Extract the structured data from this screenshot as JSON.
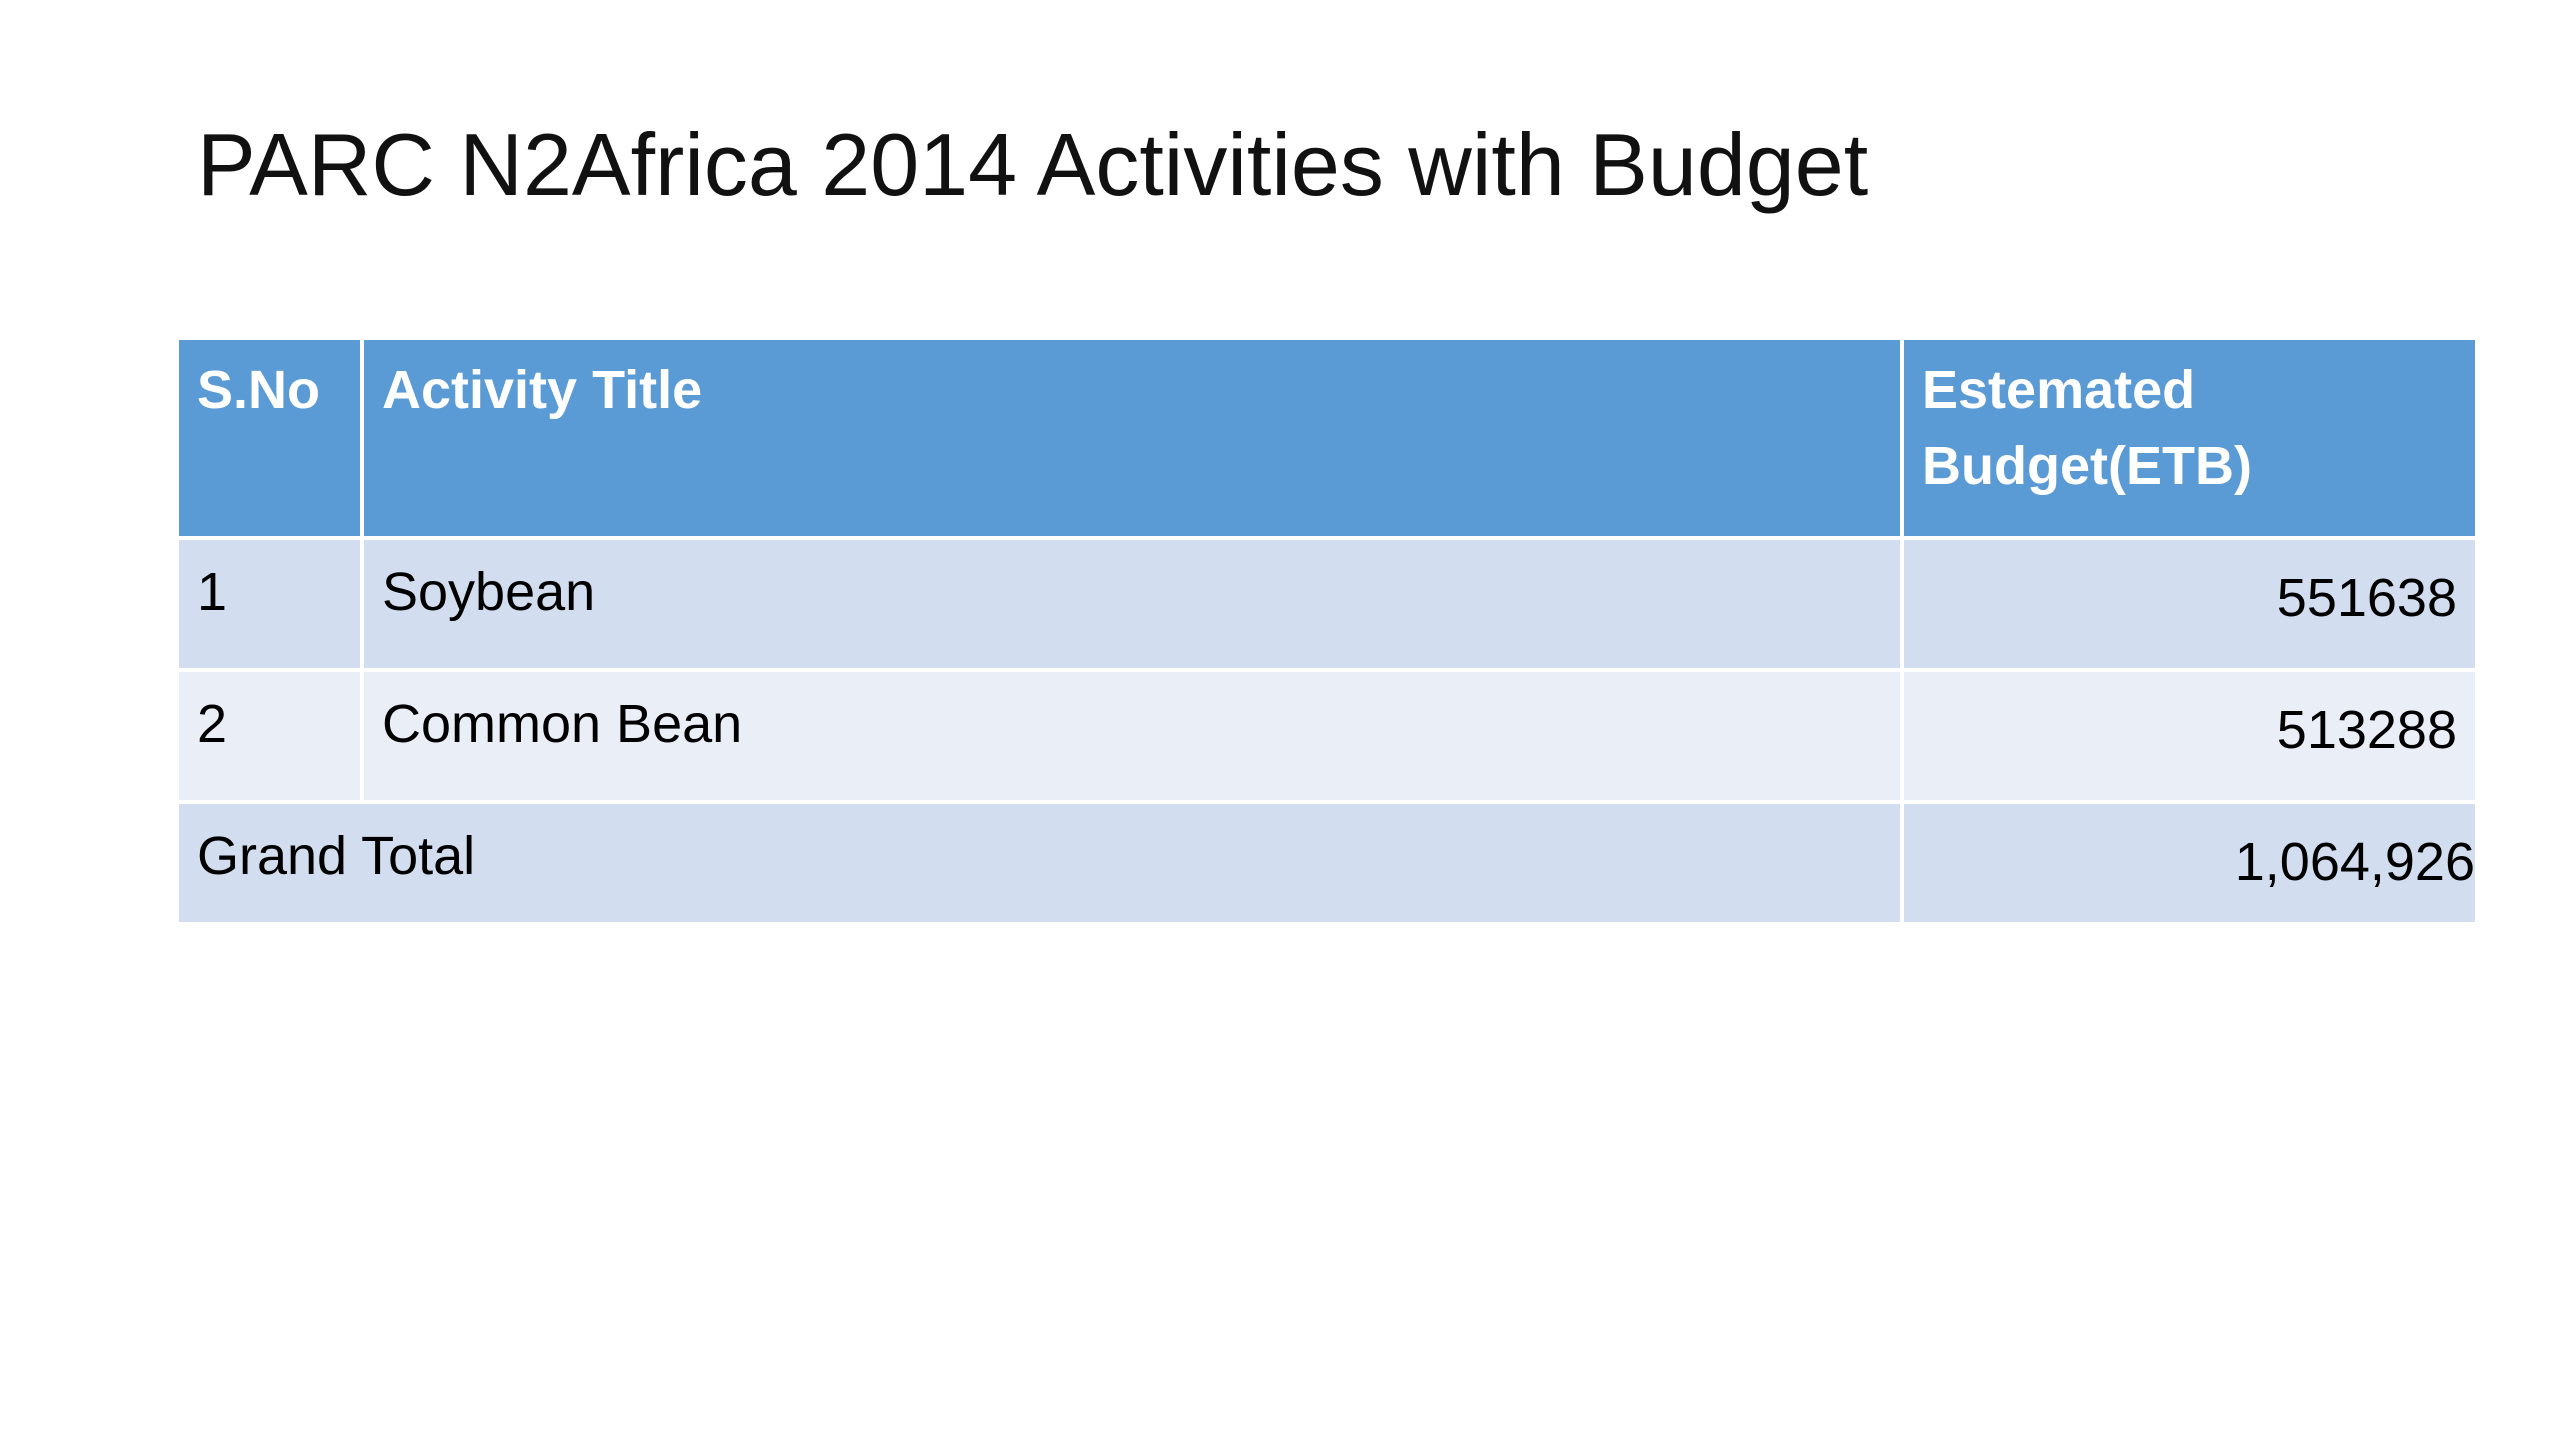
{
  "slide": {
    "title": "PARC N2Africa 2014 Activities with Budget"
  },
  "table": {
    "headers": {
      "sno": "S.No",
      "activity": "Activity Title",
      "budget": "Estemated Budget(ETB)"
    },
    "rows": [
      {
        "sno": "1",
        "activity": "Soybean",
        "budget": "551638"
      },
      {
        "sno": "2",
        "activity": "Common Bean",
        "budget": "513288"
      }
    ],
    "total": {
      "label": "Grand Total",
      "value": "1,064,926"
    }
  },
  "colors": {
    "header_bg": "#5b9bd5",
    "row_band_dark": "#d2deef",
    "row_band_light": "#eaeff7"
  }
}
